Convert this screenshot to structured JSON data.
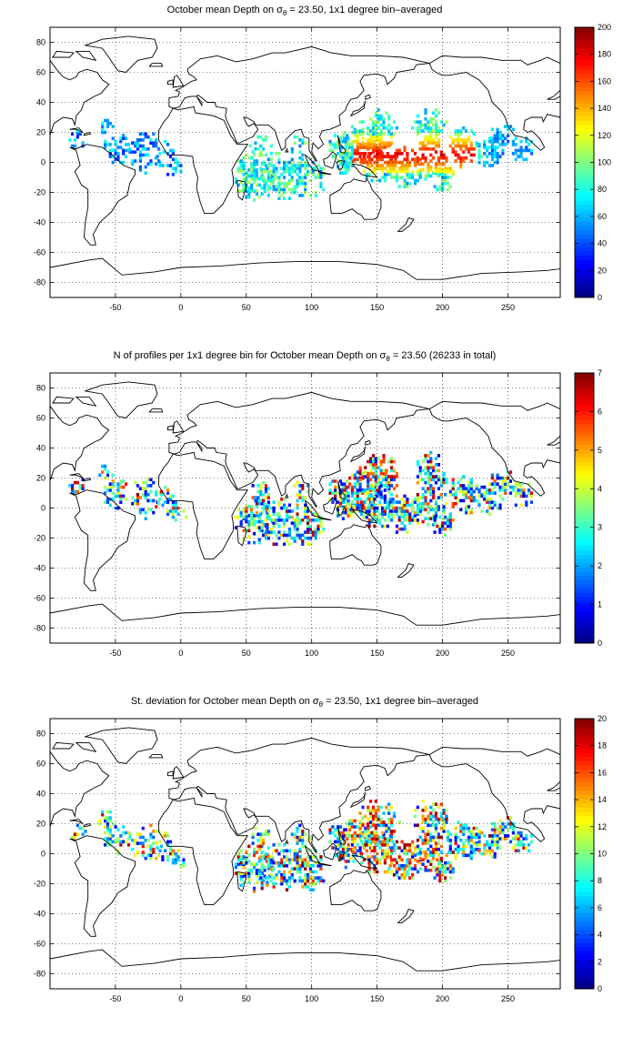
{
  "panels": [
    {
      "title_pre": "October mean Depth on σ",
      "title_sub": "θ",
      "title_post": " = 23.50, 1x1 degree bin–averaged",
      "field": "mean-depth",
      "colorbar": {
        "min": 0,
        "max": 200,
        "ticks": [
          "0",
          "20",
          "40",
          "60",
          "80",
          "100",
          "120",
          "140",
          "160",
          "180",
          "200"
        ]
      }
    },
    {
      "title_pre": "N of profiles per 1x1 degree bin for October mean Depth on σ",
      "title_sub": "θ",
      "title_post": " = 23.50 (26233 in total)",
      "field": "profile-count",
      "colorbar": {
        "min": 0,
        "max": 7,
        "ticks": [
          "0",
          "1",
          "2",
          "3",
          "4",
          "5",
          "6",
          "7"
        ]
      }
    },
    {
      "title_pre": "St. deviation for October mean Depth on σ",
      "title_sub": "θ",
      "title_post": " = 23.50, 1x1 degree bin–averaged",
      "field": "std-deviation",
      "colorbar": {
        "min": 0,
        "max": 20,
        "ticks": [
          "0",
          "2",
          "4",
          "6",
          "8",
          "10",
          "12",
          "14",
          "16",
          "18",
          "20"
        ]
      }
    }
  ],
  "axes": {
    "x_ticks": [
      "-50",
      "0",
      "50",
      "100",
      "150",
      "200",
      "250"
    ],
    "x_values": [
      -50,
      0,
      50,
      100,
      150,
      200,
      250
    ],
    "y_ticks": [
      "80",
      "60",
      "40",
      "20",
      "0",
      "-20",
      "-40",
      "-60",
      "-80"
    ],
    "y_values": [
      80,
      60,
      40,
      20,
      0,
      -20,
      -40,
      -60,
      -80
    ],
    "xlim": [
      -100,
      290
    ],
    "ylim": [
      -90,
      90
    ],
    "grid": "dotted"
  },
  "colormap": "jet"
}
